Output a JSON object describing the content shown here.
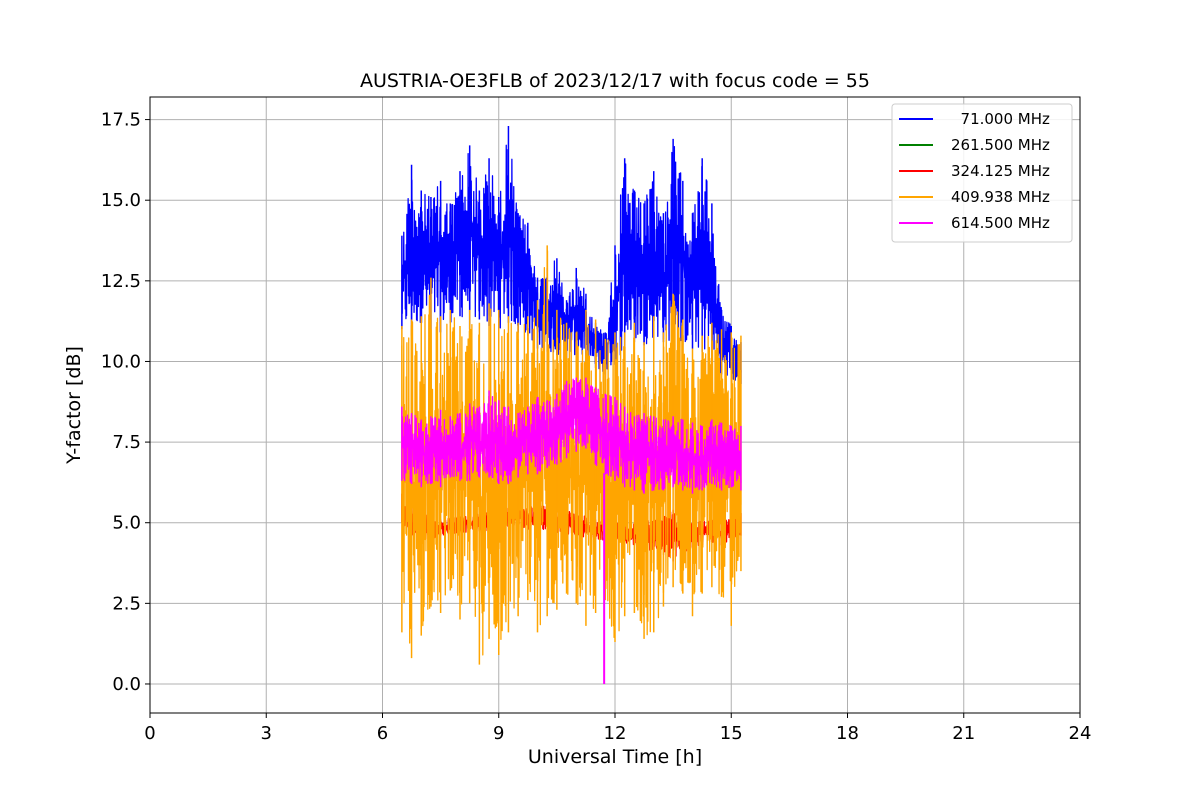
{
  "chart_data": {
    "type": "line",
    "title": "AUSTRIA-OE3FLB of 2023/12/17 with focus code = 55",
    "xlabel": "Universal Time [h]",
    "ylabel": "Y-factor [dB]",
    "xlim": [
      0,
      24
    ],
    "ylim": [
      -0.9,
      18.2
    ],
    "xticks": [
      0,
      3,
      6,
      9,
      12,
      15,
      18,
      21,
      24
    ],
    "xtick_labels": [
      "0",
      "3",
      "6",
      "9",
      "12",
      "15",
      "18",
      "21",
      "24"
    ],
    "yticks": [
      0,
      2.5,
      5,
      7.5,
      10,
      12.5,
      15,
      17.5
    ],
    "ytick_labels": [
      "0.0",
      "2.5",
      "5.0",
      "7.5",
      "10.0",
      "12.5",
      "15.0",
      "17.5"
    ],
    "grid": true,
    "legend_position": "top-right",
    "legend": [
      {
        "label": "  71.000 MHz",
        "color": "#0000ff"
      },
      {
        "label": "261.500 MHz",
        "color": "#008000"
      },
      {
        "label": "324.125 MHz",
        "color": "#ff0000"
      },
      {
        "label": "409.938 MHz",
        "color": "#ffa500"
      },
      {
        "label": "614.500 MHz",
        "color": "#ff00ff"
      }
    ],
    "series": [
      {
        "name": "71.000 MHz",
        "color": "#0000ff",
        "x": [
          6.5,
          6.75,
          7.0,
          7.25,
          7.5,
          7.75,
          8.0,
          8.25,
          8.5,
          8.75,
          9.0,
          9.25,
          9.5,
          9.75,
          10.0,
          10.25,
          10.5,
          10.75,
          11.0,
          11.25,
          11.5,
          11.75,
          12.0,
          12.25,
          12.5,
          12.75,
          13.0,
          13.25,
          13.5,
          13.75,
          14.0,
          14.25,
          14.5,
          14.75,
          15.0,
          15.25
        ],
        "y_max": [
          13.9,
          16.1,
          15.3,
          15.1,
          15.6,
          14.9,
          15.9,
          16.7,
          15.3,
          16.3,
          15.1,
          17.3,
          14.6,
          14.3,
          12.6,
          12.9,
          13.2,
          11.9,
          12.9,
          12.1,
          11.2,
          10.9,
          13.6,
          16.3,
          15.3,
          14.9,
          15.9,
          14.6,
          16.9,
          15.6,
          14.6,
          16.3,
          14.9,
          11.6,
          11.1,
          10.6
        ],
        "y_min": [
          11.0,
          10.8,
          11.2,
          11.0,
          10.9,
          11.2,
          11.4,
          11.0,
          11.3,
          11.1,
          11.0,
          11.2,
          10.9,
          10.8,
          10.4,
          10.3,
          10.2,
          10.1,
          10.2,
          10.0,
          9.8,
          9.6,
          9.9,
          10.4,
          10.6,
          10.5,
          10.7,
          10.6,
          10.6,
          10.5,
          10.4,
          10.3,
          10.0,
          9.6,
          9.4,
          9.3
        ]
      },
      {
        "name": "261.500 MHz",
        "color": "#008000",
        "x": [],
        "y_max": [],
        "y_min": []
      },
      {
        "name": "324.125 MHz",
        "color": "#ff0000",
        "x": [
          6.5,
          6.75,
          7.0,
          7.25,
          7.5,
          8.0,
          8.5,
          9.0,
          9.5,
          10.0,
          10.5,
          11.0,
          11.5,
          12.0,
          12.5,
          13.0,
          13.25,
          13.5,
          13.75,
          14.0,
          14.25,
          14.5,
          14.75,
          15.0,
          15.25
        ],
        "y_max": [
          5.9,
          5.6,
          5.4,
          5.3,
          5.1,
          5.2,
          5.3,
          5.4,
          5.5,
          5.6,
          5.5,
          5.3,
          5.1,
          5.0,
          5.0,
          5.1,
          5.2,
          5.4,
          5.2,
          5.0,
          5.1,
          5.1,
          5.0,
          5.2,
          5.3
        ],
        "y_min": [
          5.0,
          4.6,
          4.5,
          4.5,
          4.6,
          4.7,
          4.7,
          4.8,
          4.8,
          4.8,
          4.7,
          4.6,
          4.5,
          4.4,
          4.3,
          4.1,
          4.0,
          3.8,
          4.0,
          4.2,
          4.3,
          4.4,
          4.3,
          4.5,
          4.6
        ]
      },
      {
        "name": "409.938 MHz",
        "color": "#ffa500",
        "x": [
          6.5,
          6.75,
          7.0,
          7.25,
          7.5,
          7.75,
          8.0,
          8.25,
          8.5,
          8.75,
          9.0,
          9.25,
          9.5,
          9.75,
          10.0,
          10.25,
          10.5,
          10.75,
          11.0,
          11.25,
          11.5,
          11.75,
          12.0,
          12.25,
          12.5,
          12.75,
          13.0,
          13.25,
          13.5,
          13.75,
          14.0,
          14.25,
          14.5,
          14.75,
          15.0,
          15.25
        ],
        "y_max": [
          11.1,
          11.3,
          11.4,
          12.6,
          11.4,
          11.6,
          11.1,
          11.6,
          11.2,
          11.8,
          11.6,
          11.4,
          11.2,
          11.4,
          11.9,
          13.6,
          11.6,
          11.2,
          10.9,
          11.6,
          11.3,
          10.7,
          10.9,
          10.9,
          11.2,
          10.6,
          11.4,
          10.9,
          12.1,
          11.3,
          10.4,
          10.8,
          11.2,
          11.0,
          10.9,
          10.8
        ],
        "y_min": [
          1.6,
          0.8,
          1.5,
          2.4,
          2.2,
          2.9,
          2.0,
          2.5,
          0.6,
          1.4,
          0.9,
          1.6,
          2.1,
          2.6,
          1.6,
          2.1,
          2.3,
          2.8,
          2.5,
          1.8,
          2.2,
          2.6,
          1.3,
          2.1,
          2.2,
          1.4,
          1.6,
          2.4,
          3.0,
          2.8,
          2.1,
          2.8,
          3.0,
          2.7,
          1.8,
          3.5
        ]
      },
      {
        "name": "614.500 MHz",
        "color": "#ff00ff",
        "x": [
          6.5,
          6.75,
          7.0,
          7.25,
          7.5,
          7.75,
          8.0,
          8.25,
          8.5,
          8.75,
          9.0,
          9.25,
          9.5,
          9.75,
          10.0,
          10.25,
          10.5,
          10.75,
          11.0,
          11.25,
          11.5,
          11.75,
          12.0,
          12.25,
          12.5,
          12.75,
          13.0,
          13.25,
          13.5,
          13.75,
          14.0,
          14.25,
          14.5,
          14.75,
          15.0,
          15.25
        ],
        "y_max": [
          8.6,
          8.4,
          8.2,
          8.3,
          8.5,
          8.3,
          8.4,
          8.7,
          8.6,
          9.1,
          8.8,
          8.6,
          8.4,
          8.6,
          8.9,
          8.8,
          9.0,
          9.4,
          9.5,
          9.5,
          9.2,
          9.0,
          8.9,
          8.6,
          8.3,
          8.4,
          8.3,
          8.2,
          8.3,
          8.2,
          8.1,
          8.0,
          8.2,
          8.1,
          8.0,
          8.0
        ],
        "y_min": [
          6.3,
          6.2,
          6.1,
          6.2,
          6.1,
          6.4,
          6.3,
          6.3,
          6.4,
          6.4,
          6.2,
          6.2,
          6.4,
          6.5,
          6.5,
          6.7,
          6.8,
          7.0,
          7.2,
          7.3,
          6.8,
          6.5,
          6.3,
          6.1,
          6.0,
          5.9,
          6.0,
          6.0,
          6.1,
          6.0,
          5.9,
          6.0,
          6.2,
          6.0,
          6.1,
          6.0
        ],
        "spike": {
          "x": 11.72,
          "y": 0.0
        }
      }
    ]
  }
}
